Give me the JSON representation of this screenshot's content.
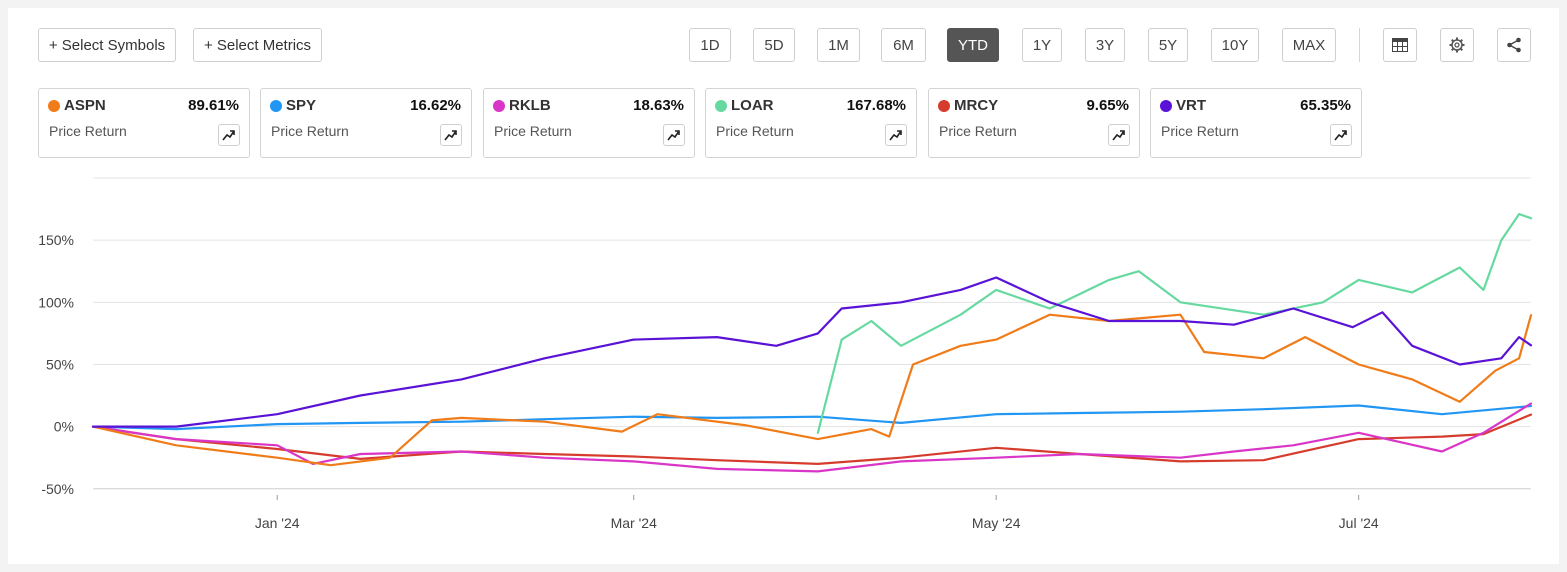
{
  "toolbar": {
    "select_symbols": "+ Select Symbols",
    "select_metrics": "+ Select Metrics",
    "ranges": [
      "1D",
      "5D",
      "1M",
      "6M",
      "YTD",
      "1Y",
      "3Y",
      "5Y",
      "10Y",
      "MAX"
    ],
    "active_range": "YTD",
    "icons": [
      "table-icon",
      "gear-icon",
      "share-icon"
    ]
  },
  "cards": [
    {
      "symbol": "ASPN",
      "value": "89.61%",
      "metric": "Price Return",
      "color": "#f07c19"
    },
    {
      "symbol": "SPY",
      "value": "16.62%",
      "metric": "Price Return",
      "color": "#2196f3"
    },
    {
      "symbol": "RKLB",
      "value": "18.63%",
      "metric": "Price Return",
      "color": "#d936c7"
    },
    {
      "symbol": "LOAR",
      "value": "167.68%",
      "metric": "Price Return",
      "color": "#66d9a0"
    },
    {
      "symbol": "MRCY",
      "value": "9.65%",
      "metric": "Price Return",
      "color": "#d63c2e"
    },
    {
      "symbol": "VRT",
      "value": "65.35%",
      "metric": "Price Return",
      "color": "#5a12d6"
    }
  ],
  "chart_data": {
    "type": "line",
    "x_unit": "date",
    "x_range": [
      "2023-12-01",
      "2024-07-30"
    ],
    "x_ticks": [
      {
        "date": "2024-01-01",
        "label": "Jan '24"
      },
      {
        "date": "2024-03-01",
        "label": "Mar '24"
      },
      {
        "date": "2024-05-01",
        "label": "May '24"
      },
      {
        "date": "2024-07-01",
        "label": "Jul '24"
      }
    ],
    "y_unit": "percent",
    "ylim": [
      -55,
      200
    ],
    "y_ticks": [
      {
        "value": -50,
        "label": "-50%"
      },
      {
        "value": 0,
        "label": "0%"
      },
      {
        "value": 50,
        "label": "50%"
      },
      {
        "value": 100,
        "label": "100%"
      },
      {
        "value": 150,
        "label": "150%"
      }
    ],
    "grid": true,
    "series": [
      {
        "name": "SPY",
        "color": "#2196f3",
        "points": [
          [
            "2023-12-01",
            0
          ],
          [
            "2023-12-15",
            -2
          ],
          [
            "2024-01-01",
            2
          ],
          [
            "2024-01-15",
            3
          ],
          [
            "2024-02-01",
            4
          ],
          [
            "2024-02-15",
            6
          ],
          [
            "2024-03-01",
            8
          ],
          [
            "2024-03-15",
            7
          ],
          [
            "2024-04-01",
            8
          ],
          [
            "2024-04-15",
            3
          ],
          [
            "2024-05-01",
            10
          ],
          [
            "2024-05-15",
            11
          ],
          [
            "2024-06-01",
            12
          ],
          [
            "2024-06-15",
            14
          ],
          [
            "2024-07-01",
            17
          ],
          [
            "2024-07-15",
            10
          ],
          [
            "2024-07-30",
            16.6
          ]
        ]
      },
      {
        "name": "MRCY",
        "color": "#d63c2e",
        "points": [
          [
            "2023-12-01",
            0
          ],
          [
            "2023-12-15",
            -10
          ],
          [
            "2024-01-01",
            -18
          ],
          [
            "2024-01-15",
            -26
          ],
          [
            "2024-02-01",
            -20
          ],
          [
            "2024-02-15",
            -22
          ],
          [
            "2024-03-01",
            -24
          ],
          [
            "2024-03-15",
            -27
          ],
          [
            "2024-04-01",
            -30
          ],
          [
            "2024-04-15",
            -25
          ],
          [
            "2024-05-01",
            -17
          ],
          [
            "2024-05-15",
            -22
          ],
          [
            "2024-06-01",
            -28
          ],
          [
            "2024-06-15",
            -27
          ],
          [
            "2024-07-01",
            -10
          ],
          [
            "2024-07-15",
            -8
          ],
          [
            "2024-07-22",
            -6
          ],
          [
            "2024-07-30",
            9.7
          ]
        ]
      },
      {
        "name": "RKLB",
        "color": "#d936c7",
        "points": [
          [
            "2023-12-01",
            0
          ],
          [
            "2023-12-15",
            -10
          ],
          [
            "2024-01-01",
            -15
          ],
          [
            "2024-01-07",
            -30
          ],
          [
            "2024-01-15",
            -22
          ],
          [
            "2024-02-01",
            -20
          ],
          [
            "2024-02-15",
            -25
          ],
          [
            "2024-03-01",
            -28
          ],
          [
            "2024-03-15",
            -34
          ],
          [
            "2024-04-01",
            -36
          ],
          [
            "2024-04-15",
            -28
          ],
          [
            "2024-05-01",
            -25
          ],
          [
            "2024-05-15",
            -22
          ],
          [
            "2024-06-01",
            -25
          ],
          [
            "2024-06-10",
            -20
          ],
          [
            "2024-06-20",
            -15
          ],
          [
            "2024-07-01",
            -5
          ],
          [
            "2024-07-15",
            -20
          ],
          [
            "2024-07-22",
            -5
          ],
          [
            "2024-07-30",
            18.6
          ]
        ]
      },
      {
        "name": "ASPN",
        "color": "#f07c19",
        "points": [
          [
            "2023-12-01",
            0
          ],
          [
            "2023-12-15",
            -15
          ],
          [
            "2024-01-01",
            -25
          ],
          [
            "2024-01-10",
            -31
          ],
          [
            "2024-01-20",
            -25
          ],
          [
            "2024-01-27",
            5
          ],
          [
            "2024-02-01",
            7
          ],
          [
            "2024-02-15",
            4
          ],
          [
            "2024-02-28",
            -4
          ],
          [
            "2024-03-05",
            10
          ],
          [
            "2024-03-20",
            1
          ],
          [
            "2024-04-01",
            -10
          ],
          [
            "2024-04-10",
            -2
          ],
          [
            "2024-04-13",
            -8
          ],
          [
            "2024-04-17",
            50
          ],
          [
            "2024-04-25",
            65
          ],
          [
            "2024-05-01",
            70
          ],
          [
            "2024-05-10",
            90
          ],
          [
            "2024-05-20",
            85
          ],
          [
            "2024-06-01",
            90
          ],
          [
            "2024-06-05",
            60
          ],
          [
            "2024-06-15",
            55
          ],
          [
            "2024-06-22",
            72
          ],
          [
            "2024-07-01",
            50
          ],
          [
            "2024-07-10",
            38
          ],
          [
            "2024-07-18",
            20
          ],
          [
            "2024-07-24",
            45
          ],
          [
            "2024-07-28",
            55
          ],
          [
            "2024-07-30",
            89.6
          ]
        ]
      },
      {
        "name": "LOAR",
        "color": "#66d9a0",
        "points": [
          [
            "2024-04-01",
            -5
          ],
          [
            "2024-04-05",
            70
          ],
          [
            "2024-04-10",
            85
          ],
          [
            "2024-04-15",
            65
          ],
          [
            "2024-04-25",
            90
          ],
          [
            "2024-05-01",
            110
          ],
          [
            "2024-05-10",
            95
          ],
          [
            "2024-05-20",
            118
          ],
          [
            "2024-05-25",
            125
          ],
          [
            "2024-06-01",
            100
          ],
          [
            "2024-06-15",
            90
          ],
          [
            "2024-06-25",
            100
          ],
          [
            "2024-07-01",
            118
          ],
          [
            "2024-07-10",
            108
          ],
          [
            "2024-07-18",
            128
          ],
          [
            "2024-07-22",
            110
          ],
          [
            "2024-07-25",
            150
          ],
          [
            "2024-07-28",
            171
          ],
          [
            "2024-07-30",
            167.7
          ]
        ]
      },
      {
        "name": "VRT",
        "color": "#5a12d6",
        "points": [
          [
            "2023-12-01",
            0
          ],
          [
            "2023-12-15",
            0
          ],
          [
            "2024-01-01",
            10
          ],
          [
            "2024-01-15",
            25
          ],
          [
            "2024-02-01",
            38
          ],
          [
            "2024-02-15",
            55
          ],
          [
            "2024-03-01",
            70
          ],
          [
            "2024-03-15",
            72
          ],
          [
            "2024-03-25",
            65
          ],
          [
            "2024-04-01",
            75
          ],
          [
            "2024-04-05",
            95
          ],
          [
            "2024-04-15",
            100
          ],
          [
            "2024-04-25",
            110
          ],
          [
            "2024-05-01",
            120
          ],
          [
            "2024-05-10",
            100
          ],
          [
            "2024-05-20",
            85
          ],
          [
            "2024-06-01",
            85
          ],
          [
            "2024-06-10",
            82
          ],
          [
            "2024-06-20",
            95
          ],
          [
            "2024-06-30",
            80
          ],
          [
            "2024-07-05",
            92
          ],
          [
            "2024-07-10",
            65
          ],
          [
            "2024-07-18",
            50
          ],
          [
            "2024-07-25",
            55
          ],
          [
            "2024-07-28",
            72
          ],
          [
            "2024-07-30",
            65.4
          ]
        ]
      }
    ]
  }
}
